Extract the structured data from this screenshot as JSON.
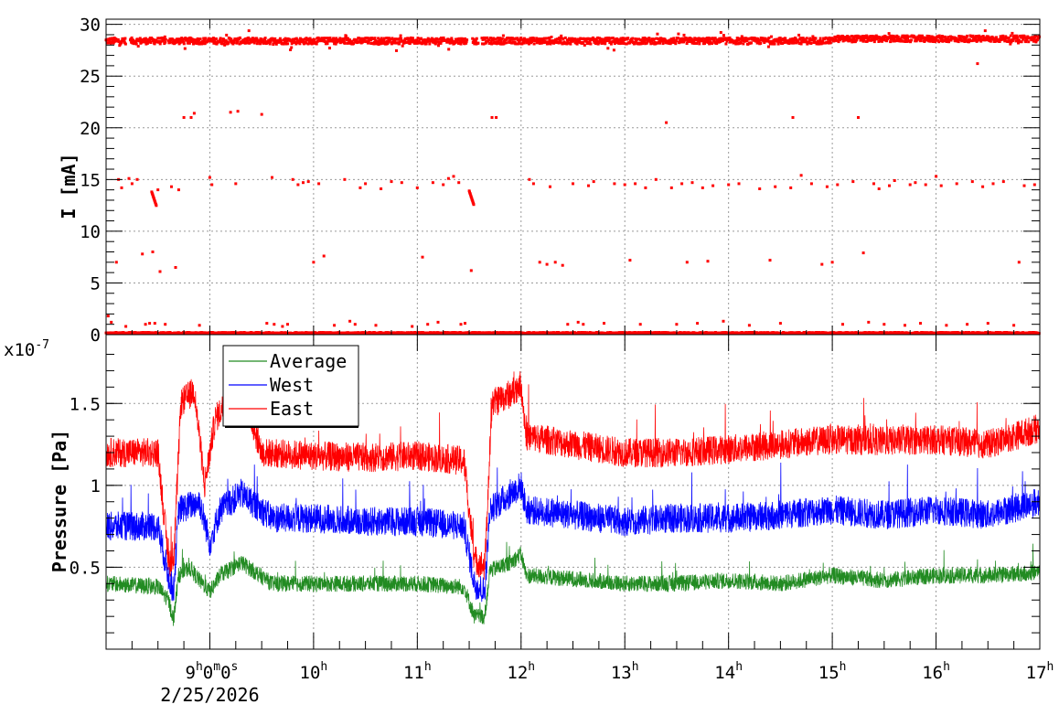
{
  "chart_data": [
    {
      "type": "scatter",
      "ylabel": "I [mA]",
      "ylim": [
        0,
        30.5
      ],
      "xlim_hours": [
        8.0,
        17.0
      ],
      "grid": true,
      "y_ticks": [
        {
          "value": 0,
          "label": "0"
        },
        {
          "value": 5,
          "label": "5"
        },
        {
          "value": 10,
          "label": "10"
        },
        {
          "value": 15,
          "label": "15"
        },
        {
          "value": 20,
          "label": "20"
        },
        {
          "value": 25,
          "label": "25"
        },
        {
          "value": 30,
          "label": "30"
        }
      ],
      "series": [
        {
          "color": "#ff0000",
          "main_band_mA": 28.4,
          "beam_off_intervals_hours": [
            [
              8.19,
              8.23
            ],
            [
              8.58,
              8.6
            ],
            [
              11.48,
              11.53
            ],
            [
              11.59,
              11.62
            ]
          ],
          "points": [
            [
              8.02,
              1.8
            ],
            [
              8.05,
              1.2
            ],
            [
              8.12,
              15.0
            ],
            [
              8.1,
              7.0
            ],
            [
              8.15,
              14.2
            ],
            [
              8.19,
              0.8
            ],
            [
              8.22,
              15.1
            ],
            [
              8.25,
              14.6
            ],
            [
              8.3,
              15.0
            ],
            [
              8.35,
              7.8
            ],
            [
              8.38,
              1.0
            ],
            [
              8.42,
              1.1
            ],
            [
              8.45,
              8.0
            ],
            [
              8.47,
              1.1
            ],
            [
              8.5,
              14.0
            ],
            [
              8.52,
              6.1
            ],
            [
              8.57,
              1.0
            ],
            [
              8.63,
              14.3
            ],
            [
              8.67,
              6.5
            ],
            [
              8.7,
              14.0
            ],
            [
              8.75,
              21.0
            ],
            [
              8.82,
              21.0
            ],
            [
              8.85,
              21.4
            ],
            [
              8.9,
              0.9
            ],
            [
              9.0,
              15.2
            ],
            [
              9.02,
              14.5
            ],
            [
              9.2,
              21.5
            ],
            [
              9.27,
              21.6
            ],
            [
              9.25,
              14.6
            ],
            [
              9.5,
              21.3
            ],
            [
              9.55,
              1.1
            ],
            [
              9.6,
              15.2
            ],
            [
              9.62,
              1.0
            ],
            [
              9.7,
              0.8
            ],
            [
              9.75,
              1.0
            ],
            [
              9.8,
              15.0
            ],
            [
              9.85,
              14.5
            ],
            [
              9.9,
              14.7
            ],
            [
              9.95,
              14.8
            ],
            [
              10.0,
              7.0
            ],
            [
              10.05,
              14.6
            ],
            [
              10.1,
              7.6
            ],
            [
              10.2,
              0.9
            ],
            [
              10.3,
              15.0
            ],
            [
              10.35,
              1.3
            ],
            [
              10.4,
              1.0
            ],
            [
              10.45,
              14.2
            ],
            [
              10.5,
              14.6
            ],
            [
              10.6,
              0.9
            ],
            [
              10.65,
              14.1
            ],
            [
              10.75,
              14.8
            ],
            [
              10.85,
              14.7
            ],
            [
              10.95,
              0.8
            ],
            [
              11.0,
              14.2
            ],
            [
              11.05,
              7.5
            ],
            [
              11.1,
              1.0
            ],
            [
              11.15,
              14.7
            ],
            [
              11.2,
              1.2
            ],
            [
              11.25,
              14.5
            ],
            [
              11.3,
              15.1
            ],
            [
              11.35,
              15.3
            ],
            [
              11.4,
              14.7
            ],
            [
              11.42,
              1.0
            ],
            [
              11.46,
              1.1
            ],
            [
              11.52,
              6.2
            ],
            [
              11.72,
              21.0
            ],
            [
              11.76,
              21.0
            ],
            [
              12.08,
              15.0
            ],
            [
              12.12,
              14.6
            ],
            [
              12.18,
              7.0
            ],
            [
              12.25,
              6.8
            ],
            [
              12.28,
              14.3
            ],
            [
              12.33,
              7.0
            ],
            [
              12.4,
              6.7
            ],
            [
              12.45,
              1.0
            ],
            [
              12.5,
              14.6
            ],
            [
              12.55,
              1.2
            ],
            [
              12.6,
              1.0
            ],
            [
              12.65,
              14.4
            ],
            [
              12.7,
              14.8
            ],
            [
              12.8,
              1.1
            ],
            [
              12.9,
              14.6
            ],
            [
              13.0,
              14.5
            ],
            [
              13.05,
              7.2
            ],
            [
              13.1,
              14.6
            ],
            [
              13.15,
              1.0
            ],
            [
              13.2,
              14.2
            ],
            [
              13.3,
              15.0
            ],
            [
              13.4,
              20.5
            ],
            [
              13.45,
              14.2
            ],
            [
              13.5,
              1.0
            ],
            [
              13.55,
              14.6
            ],
            [
              13.6,
              7.0
            ],
            [
              13.65,
              14.7
            ],
            [
              13.7,
              1.1
            ],
            [
              13.75,
              14.2
            ],
            [
              13.8,
              7.1
            ],
            [
              13.85,
              14.4
            ],
            [
              13.95,
              1.3
            ],
            [
              14.0,
              14.5
            ],
            [
              14.1,
              14.6
            ],
            [
              14.2,
              0.9
            ],
            [
              14.3,
              14.1
            ],
            [
              14.4,
              7.2
            ],
            [
              14.45,
              14.3
            ],
            [
              14.5,
              1.1
            ],
            [
              14.6,
              14.2
            ],
            [
              14.62,
              21.0
            ],
            [
              14.7,
              15.4
            ],
            [
              14.8,
              14.6
            ],
            [
              14.9,
              6.8
            ],
            [
              14.95,
              14.3
            ],
            [
              15.0,
              7.0
            ],
            [
              15.05,
              14.5
            ],
            [
              15.1,
              1.0
            ],
            [
              15.2,
              14.8
            ],
            [
              15.25,
              21.0
            ],
            [
              15.3,
              7.9
            ],
            [
              15.35,
              1.2
            ],
            [
              15.4,
              14.6
            ],
            [
              15.45,
              14.1
            ],
            [
              15.5,
              1.0
            ],
            [
              15.55,
              14.4
            ],
            [
              15.6,
              14.9
            ],
            [
              15.7,
              0.9
            ],
            [
              15.75,
              14.5
            ],
            [
              15.8,
              14.7
            ],
            [
              15.85,
              1.1
            ],
            [
              15.9,
              14.5
            ],
            [
              16.0,
              15.3
            ],
            [
              16.05,
              14.4
            ],
            [
              16.1,
              0.9
            ],
            [
              16.2,
              14.6
            ],
            [
              16.3,
              1.0
            ],
            [
              16.35,
              14.8
            ],
            [
              16.4,
              26.2
            ],
            [
              16.45,
              14.3
            ],
            [
              16.5,
              1.1
            ],
            [
              16.55,
              14.6
            ],
            [
              16.65,
              14.8
            ],
            [
              16.75,
              0.9
            ],
            [
              16.8,
              7.0
            ],
            [
              16.85,
              14.4
            ],
            [
              16.95,
              14.5
            ]
          ],
          "dense_bands_mA": [
            [
              12.3,
              14.0
            ]
          ]
        }
      ]
    },
    {
      "type": "line",
      "ylabel": "Pressure [Pa]",
      "exponent_label": "x10",
      "exponent_value": "-7",
      "ylim": [
        0.0,
        1.92
      ],
      "xlim_hours": [
        8.0,
        17.0
      ],
      "grid": true,
      "legend_position": "top-left",
      "y_ticks": [
        {
          "value": 0.5,
          "label": "0.5"
        },
        {
          "value": 1.0,
          "label": "1"
        },
        {
          "value": 1.5,
          "label": "1.5"
        }
      ],
      "x_ticks": [
        {
          "value": 9.0,
          "hour": "9",
          "rest": "0m0s"
        },
        {
          "value": 10.0,
          "hour": "10",
          "rest": ""
        },
        {
          "value": 11.0,
          "hour": "11",
          "rest": ""
        },
        {
          "value": 12.0,
          "hour": "12",
          "rest": ""
        },
        {
          "value": 13.0,
          "hour": "13",
          "rest": ""
        },
        {
          "value": 14.0,
          "hour": "14",
          "rest": ""
        },
        {
          "value": 15.0,
          "hour": "15",
          "rest": ""
        },
        {
          "value": 16.0,
          "hour": "16",
          "rest": ""
        },
        {
          "value": 17.0,
          "hour": "17",
          "rest": ""
        }
      ],
      "series": [
        {
          "name": "Average",
          "color": "#228b22",
          "key_points": [
            [
              8.0,
              0.4
            ],
            [
              8.5,
              0.38
            ],
            [
              8.6,
              0.3
            ],
            [
              8.65,
              0.18
            ],
            [
              8.7,
              0.45
            ],
            [
              8.8,
              0.5
            ],
            [
              8.9,
              0.42
            ],
            [
              9.0,
              0.35
            ],
            [
              9.1,
              0.45
            ],
            [
              9.3,
              0.53
            ],
            [
              9.6,
              0.4
            ],
            [
              10.0,
              0.4
            ],
            [
              10.5,
              0.4
            ],
            [
              11.0,
              0.4
            ],
            [
              11.45,
              0.38
            ],
            [
              11.55,
              0.2
            ],
            [
              11.65,
              0.2
            ],
            [
              11.7,
              0.48
            ],
            [
              11.9,
              0.53
            ],
            [
              12.0,
              0.58
            ],
            [
              12.05,
              0.45
            ],
            [
              12.5,
              0.43
            ],
            [
              13.0,
              0.4
            ],
            [
              13.5,
              0.4
            ],
            [
              14.0,
              0.42
            ],
            [
              14.5,
              0.4
            ],
            [
              15.0,
              0.45
            ],
            [
              15.5,
              0.42
            ],
            [
              16.0,
              0.45
            ],
            [
              16.5,
              0.45
            ],
            [
              17.0,
              0.47
            ]
          ],
          "noise": 0.05
        },
        {
          "name": "West",
          "color": "#0000ff",
          "key_points": [
            [
              8.0,
              0.75
            ],
            [
              8.5,
              0.75
            ],
            [
              8.6,
              0.45
            ],
            [
              8.65,
              0.35
            ],
            [
              8.7,
              0.85
            ],
            [
              8.9,
              0.9
            ],
            [
              9.0,
              0.65
            ],
            [
              9.1,
              0.85
            ],
            [
              9.3,
              0.95
            ],
            [
              9.6,
              0.8
            ],
            [
              10.0,
              0.8
            ],
            [
              10.5,
              0.78
            ],
            [
              11.0,
              0.78
            ],
            [
              11.45,
              0.75
            ],
            [
              11.55,
              0.4
            ],
            [
              11.65,
              0.35
            ],
            [
              11.7,
              0.85
            ],
            [
              11.9,
              0.95
            ],
            [
              12.0,
              1.0
            ],
            [
              12.05,
              0.85
            ],
            [
              12.5,
              0.82
            ],
            [
              13.0,
              0.78
            ],
            [
              13.5,
              0.8
            ],
            [
              14.0,
              0.8
            ],
            [
              14.5,
              0.82
            ],
            [
              15.0,
              0.85
            ],
            [
              15.5,
              0.82
            ],
            [
              16.0,
              0.85
            ],
            [
              16.5,
              0.82
            ],
            [
              17.0,
              0.9
            ]
          ],
          "noise": 0.09
        },
        {
          "name": "East",
          "color": "#ff0000",
          "key_points": [
            [
              8.0,
              1.2
            ],
            [
              8.5,
              1.2
            ],
            [
              8.6,
              0.55
            ],
            [
              8.65,
              0.5
            ],
            [
              8.72,
              1.5
            ],
            [
              8.85,
              1.58
            ],
            [
              8.95,
              1.0
            ],
            [
              9.05,
              1.4
            ],
            [
              9.2,
              1.55
            ],
            [
              9.35,
              1.5
            ],
            [
              9.5,
              1.2
            ],
            [
              10.0,
              1.18
            ],
            [
              10.5,
              1.17
            ],
            [
              11.0,
              1.18
            ],
            [
              11.45,
              1.15
            ],
            [
              11.55,
              0.55
            ],
            [
              11.65,
              0.5
            ],
            [
              11.72,
              1.5
            ],
            [
              11.9,
              1.56
            ],
            [
              12.0,
              1.62
            ],
            [
              12.05,
              1.3
            ],
            [
              12.5,
              1.25
            ],
            [
              13.0,
              1.2
            ],
            [
              13.5,
              1.2
            ],
            [
              14.0,
              1.22
            ],
            [
              14.5,
              1.25
            ],
            [
              15.0,
              1.28
            ],
            [
              15.5,
              1.27
            ],
            [
              16.0,
              1.28
            ],
            [
              16.5,
              1.25
            ],
            [
              17.0,
              1.35
            ]
          ],
          "noise": 0.09
        }
      ],
      "date_label": "2/25/2026"
    }
  ]
}
